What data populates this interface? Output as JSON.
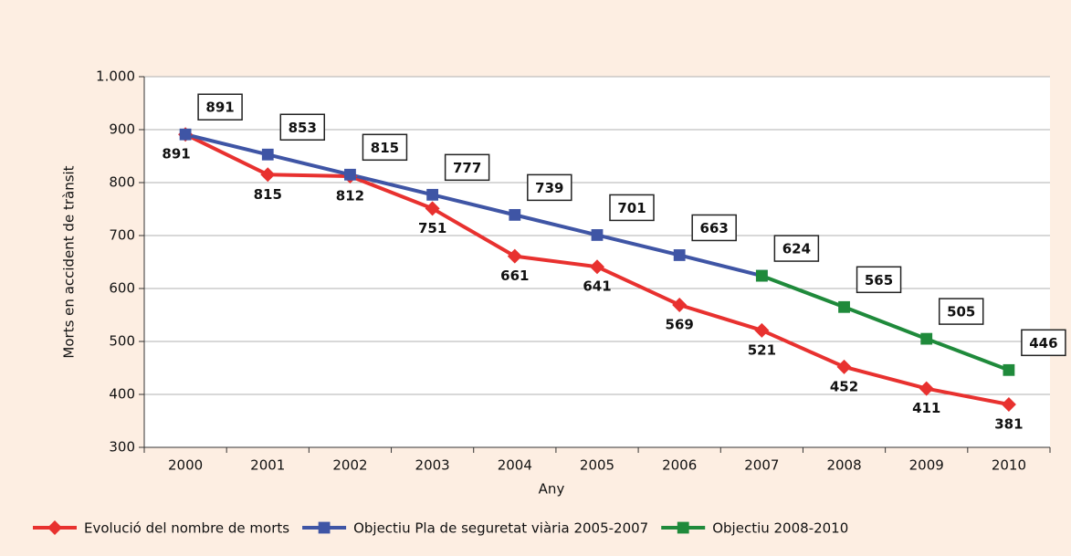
{
  "chart_data": {
    "type": "line",
    "x_label": "Any",
    "y_label": "Morts en accident de trànsit",
    "categories": [
      "2000",
      "2001",
      "2002",
      "2003",
      "2004",
      "2005",
      "2006",
      "2007",
      "2008",
      "2009",
      "2010"
    ],
    "series": [
      {
        "name": "Evolució del nombre de morts",
        "color": "#e8312f",
        "marker": "diamond",
        "values": [
          891,
          815,
          812,
          751,
          661,
          641,
          569,
          521,
          452,
          411,
          381
        ]
      },
      {
        "name": "Objectiu Pla de seguretat viària 2005-2007",
        "color": "#3f55a5",
        "marker": "square",
        "values": [
          891,
          853,
          815,
          777,
          739,
          701,
          663,
          624,
          null,
          null,
          null
        ]
      },
      {
        "name": "Objectiu 2008-2010",
        "color": "#1f8a3b",
        "marker": "square",
        "values": [
          null,
          null,
          null,
          null,
          null,
          null,
          null,
          624,
          565,
          505,
          446
        ]
      }
    ],
    "ylim": [
      300,
      1000
    ],
    "yticks": [
      300,
      400,
      500,
      600,
      700,
      800,
      900,
      {
        "value": 1000,
        "label": "1.000"
      }
    ],
    "grid": true,
    "legend": "bottom"
  }
}
